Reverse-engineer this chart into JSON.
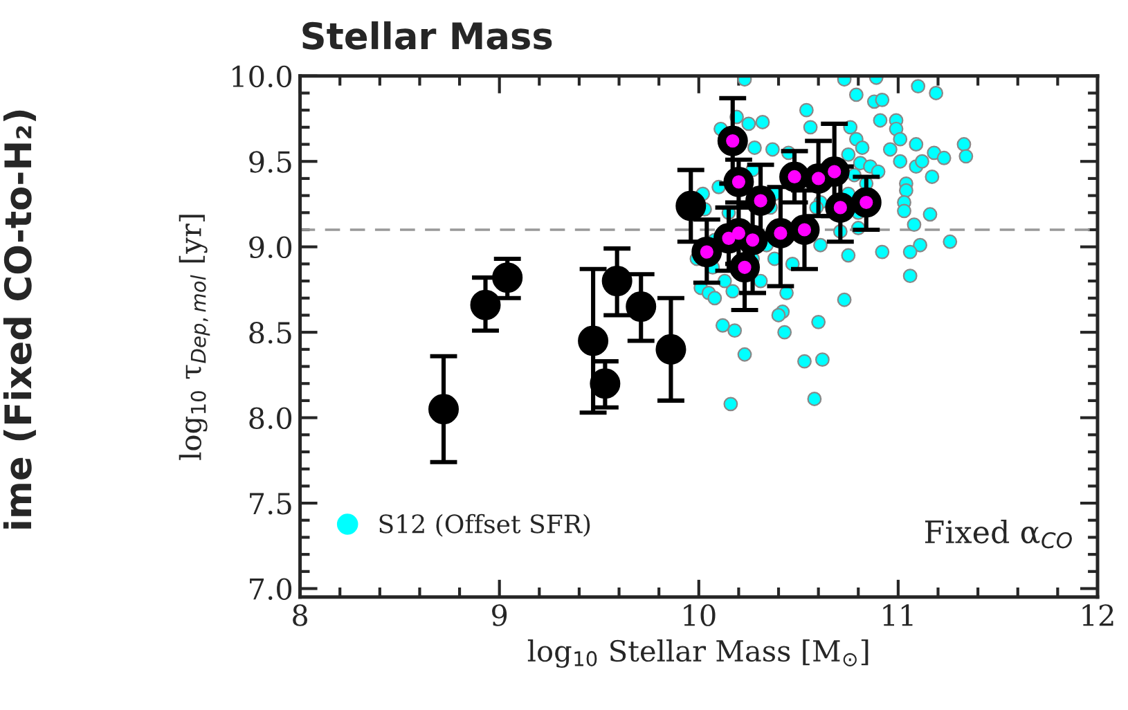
{
  "chart_data": {
    "type": "scatter",
    "title": "Stellar Mass",
    "xlabel": "log$_{10}$ Stellar Mass [M$_{⊙}$]",
    "ylabel": "log$_{10}$ τ$_{Dep,mol}$ [yr]",
    "xlim": [
      8,
      12
    ],
    "ylim": [
      6.95,
      10.0
    ],
    "xticks": [
      8,
      9,
      10,
      11,
      12
    ],
    "yticks": [
      {
        "value": 7.0,
        "label": "7.0"
      },
      {
        "value": 7.5,
        "label": "7.5"
      },
      {
        "value": 8.0,
        "label": "8.0"
      },
      {
        "value": 8.5,
        "label": "8.5"
      },
      {
        "value": 9.0,
        "label": "9.0"
      },
      {
        "value": 9.5,
        "label": "9.5"
      },
      {
        "value": 10.0,
        "label": "10.0"
      }
    ],
    "grid": false,
    "legend": "bottom left",
    "marker": "circle",
    "ref_lines": [
      {
        "axis": "y",
        "value": 9.1,
        "color": "#999999",
        "line_style": "dashed"
      }
    ],
    "annotations": [
      {
        "text": "Fixed α$_{CO}$"
      },
      {
        "text": "ime (Fixed CO-to-H₂)"
      }
    ],
    "series": [
      {
        "name": "S12 (Offset SFR)",
        "color": "#00ffff",
        "x": [
          10.23,
          10.73,
          10.89,
          11.1,
          11.19,
          10.79,
          10.88,
          10.92,
          10.54,
          10.11,
          10.19,
          10.25,
          10.32,
          10.56,
          10.76,
          10.91,
          10.99,
          10.99,
          11.01,
          10.79,
          10.82,
          11.09,
          11.33,
          11.34,
          10.96,
          11.18,
          11.23,
          10.28,
          10.37,
          10.45,
          10.75,
          11.01,
          11.09,
          11.12,
          11.17,
          10.81,
          10.86,
          10.9,
          11.04,
          11.04,
          11.03,
          11.03,
          11.16,
          11.08,
          11.26,
          11.11,
          11.06,
          10.92,
          10.75,
          10.73,
          11.06,
          10.02,
          10.1,
          10.03,
          10.07,
          10.01,
          10.05,
          10.08,
          10.13,
          10.17,
          10.31,
          10.38,
          10.44,
          10.42,
          10.4,
          10.43,
          10.6,
          10.61,
          10.12,
          10.18,
          10.23,
          10.53,
          10.62,
          10.16,
          10.58,
          10.61,
          10.38,
          10.27,
          10.78,
          10.84,
          10.75,
          10.36,
          10.59,
          10.34,
          10.8,
          10.08,
          10.15,
          10.27,
          10.47,
          9.99,
          10.8,
          10.71
        ],
        "values": [
          9.98,
          9.98,
          9.99,
          9.94,
          9.9,
          9.89,
          9.85,
          9.86,
          9.8,
          9.69,
          9.76,
          9.72,
          9.73,
          9.7,
          9.7,
          9.74,
          9.74,
          9.69,
          9.63,
          9.63,
          9.58,
          9.6,
          9.6,
          9.53,
          9.57,
          9.55,
          9.52,
          9.58,
          9.57,
          9.55,
          9.54,
          9.5,
          9.47,
          9.5,
          9.41,
          9.49,
          9.47,
          9.44,
          9.37,
          9.33,
          9.26,
          9.21,
          9.19,
          9.13,
          9.03,
          9.01,
          8.97,
          8.97,
          8.95,
          8.69,
          8.83,
          9.31,
          9.35,
          9.22,
          8.88,
          8.76,
          8.73,
          8.7,
          8.8,
          8.74,
          8.8,
          8.93,
          8.73,
          8.62,
          8.6,
          8.5,
          8.56,
          9.01,
          8.54,
          8.51,
          8.37,
          8.33,
          8.34,
          8.08,
          8.11,
          9.26,
          9.31,
          9.45,
          9.42,
          9.37,
          9.31,
          9.23,
          9.23,
          9.01,
          9.2,
          9.04,
          9.2,
          8.93,
          8.9,
          8.93,
          9.11,
          9.09
        ]
      },
      {
        "color": "#000000",
        "x": [
          8.72,
          8.93,
          9.04,
          9.47,
          9.53,
          9.59,
          9.71,
          9.86,
          9.96
        ],
        "values": [
          8.05,
          8.66,
          8.82,
          8.45,
          8.2,
          8.8,
          8.65,
          8.4,
          9.24
        ],
        "errors": [
          [
            7.74,
            8.36
          ],
          [
            8.51,
            8.82
          ],
          [
            8.7,
            8.93
          ],
          [
            8.03,
            8.87
          ],
          [
            8.06,
            8.33
          ],
          [
            8.6,
            8.99
          ],
          [
            8.45,
            8.84
          ],
          [
            8.1,
            8.7
          ],
          [
            9.03,
            9.45
          ]
        ]
      },
      {
        "color": "#ff00ff",
        "x": [
          10.04,
          10.17,
          10.2,
          10.15,
          10.2,
          10.23,
          10.27,
          10.31,
          10.41,
          10.48,
          10.53,
          10.6,
          10.68,
          10.71,
          10.84
        ],
        "values": [
          8.97,
          9.62,
          9.38,
          9.05,
          9.08,
          8.88,
          9.04,
          9.27,
          9.08,
          9.41,
          9.1,
          9.4,
          9.44,
          9.23,
          9.26
        ],
        "errors": [
          [
            8.79,
            9.16
          ],
          [
            9.37,
            9.87
          ],
          [
            9.23,
            9.51
          ],
          [
            8.86,
            9.23
          ],
          [
            8.9,
            9.26
          ],
          [
            8.63,
            9.09
          ],
          [
            8.73,
            9.24
          ],
          [
            9.07,
            9.48
          ],
          [
            8.77,
            9.35
          ],
          [
            9.26,
            9.56
          ],
          [
            8.87,
            9.33
          ],
          [
            9.18,
            9.62
          ],
          [
            9.18,
            9.72
          ],
          [
            9.03,
            9.47
          ],
          [
            9.1,
            9.41
          ]
        ]
      }
    ]
  }
}
